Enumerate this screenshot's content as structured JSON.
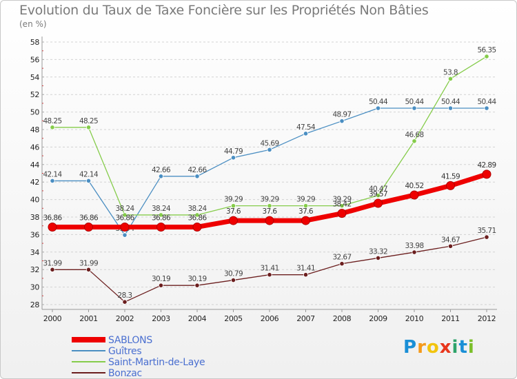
{
  "title": "Evolution du Taux de Taxe Foncière sur les Propriétés Non Bâties",
  "unit_label": "(en %)",
  "logo": {
    "letters": [
      "P",
      "r",
      "o",
      "x",
      "i",
      "t",
      "i"
    ]
  },
  "chart_data": {
    "type": "line",
    "x": [
      "2000",
      "2001",
      "2002",
      "2003",
      "2004",
      "2005",
      "2006",
      "2007",
      "2008",
      "2009",
      "2010",
      "2011",
      "2012"
    ],
    "ylim": [
      28,
      58
    ],
    "yticks": [
      28,
      30,
      32,
      34,
      36,
      38,
      40,
      42,
      44,
      46,
      48,
      50,
      52,
      54,
      56,
      58
    ],
    "grid": "horizontal dashed",
    "legend_position": "bottom-left",
    "series": [
      {
        "name": "Guîtres",
        "color": "#4a8ec2",
        "values": [
          42.14,
          42.14,
          35.94,
          42.66,
          42.66,
          44.79,
          45.69,
          47.54,
          48.97,
          50.44,
          50.44,
          50.44,
          50.44
        ],
        "labels": [
          "42.14",
          "42.14",
          "35.94",
          "42.66",
          "42.66",
          "44.79",
          "45.69",
          "47.54",
          "48.97",
          "50.44",
          "50.44",
          "50.44",
          "50.44"
        ]
      },
      {
        "name": "Saint-Martin-de-Laye",
        "color": "#85cc4a",
        "values": [
          48.25,
          48.25,
          38.24,
          38.24,
          38.24,
          39.29,
          39.29,
          39.29,
          39.29,
          40.47,
          46.68,
          53.8,
          56.35
        ],
        "labels": [
          "48.25",
          "48.25",
          "38.24",
          "38.24",
          "38.24",
          "39.29",
          "39.29",
          "39.29",
          "39.29",
          "40.47",
          "46.68",
          "53.8",
          "56.35"
        ]
      },
      {
        "name": "Bonzac",
        "color": "#6b1e1e",
        "values": [
          31.99,
          31.99,
          28.3,
          30.19,
          30.19,
          30.79,
          31.41,
          31.41,
          32.67,
          33.32,
          33.98,
          34.67,
          35.71
        ],
        "labels": [
          "31.99",
          "31.99",
          "28.3",
          "30.19",
          "30.19",
          "30.79",
          "31.41",
          "31.41",
          "32.67",
          "33.32",
          "33.98",
          "34.67",
          "35.71"
        ]
      },
      {
        "name": "SABLONS",
        "color": "#ee0000",
        "values": [
          36.86,
          36.86,
          36.86,
          36.86,
          36.86,
          37.6,
          37.6,
          37.6,
          38.42,
          39.57,
          40.52,
          41.59,
          42.89
        ],
        "labels": [
          "36.86",
          "36.86",
          "36.86",
          "36.86",
          "36.86",
          "37.6",
          "37.6",
          "37.6",
          "38.42",
          "39.57",
          "40.52",
          "41.59",
          "42.89"
        ]
      }
    ],
    "legend_order": [
      "SABLONS",
      "Guîtres",
      "Saint-Martin-de-Laye",
      "Bonzac"
    ]
  }
}
